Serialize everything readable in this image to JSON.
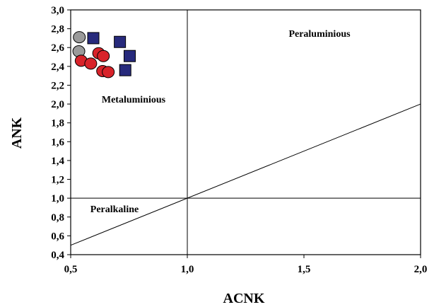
{
  "chart_data": {
    "type": "scatter",
    "xlabel": "ACNK",
    "ylabel": "ANK",
    "xlim": [
      0.5,
      2.0
    ],
    "ylim": [
      0.4,
      3.0
    ],
    "x_ticks": [
      "0,5",
      "1,0",
      "1,5",
      "2,0"
    ],
    "y_ticks": [
      "0,4",
      "0,6",
      "0,8",
      "1,0",
      "1,2",
      "1,4",
      "1,6",
      "1,8",
      "2,0",
      "2,2",
      "2,4",
      "2,6",
      "2,8",
      "3,0"
    ],
    "grid": false,
    "legend": "none",
    "fields": [
      {
        "label": "Peraluminious"
      },
      {
        "label": "Metaluminious"
      },
      {
        "label": "Peralkaline"
      }
    ],
    "reference_lines": [
      {
        "x": [
          1.0,
          1.0
        ],
        "y": [
          0.4,
          3.0
        ]
      },
      {
        "x": [
          0.5,
          2.0
        ],
        "y": [
          1.0,
          1.0
        ]
      },
      {
        "x": [
          0.5,
          2.0
        ],
        "y": [
          0.5,
          2.0
        ]
      }
    ],
    "series": [
      {
        "marker": "circle",
        "color": "#9a9a9a",
        "points": [
          [
            0.537,
            2.71
          ],
          [
            0.535,
            2.56
          ]
        ]
      },
      {
        "marker": "square",
        "color": "#272a7c",
        "points": [
          [
            0.597,
            2.7
          ],
          [
            0.711,
            2.66
          ],
          [
            0.753,
            2.51
          ],
          [
            0.734,
            2.36
          ]
        ]
      },
      {
        "marker": "circle",
        "color": "#d8232a",
        "points": [
          [
            0.545,
            2.46
          ],
          [
            0.586,
            2.43
          ],
          [
            0.62,
            2.54
          ],
          [
            0.64,
            2.51
          ],
          [
            0.637,
            2.35
          ],
          [
            0.661,
            2.34
          ]
        ]
      }
    ]
  }
}
